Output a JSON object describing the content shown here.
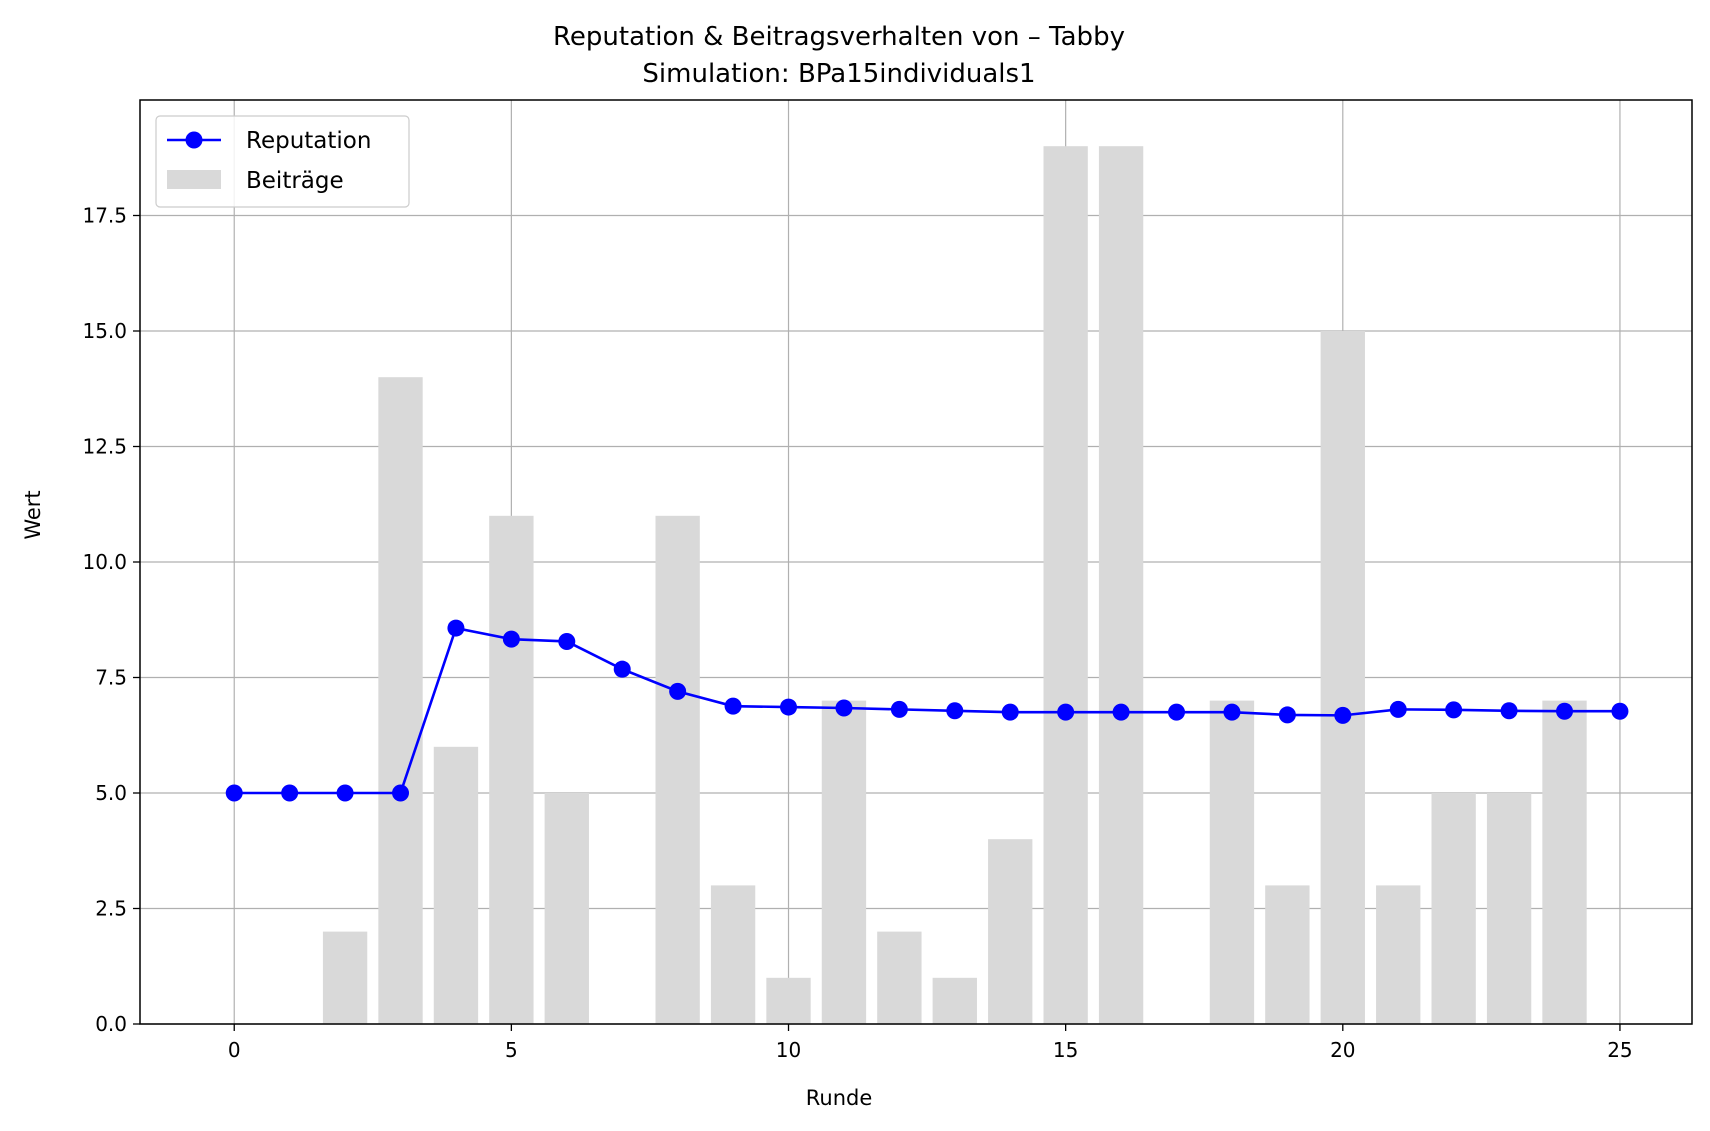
{
  "chart_data": {
    "type": "bar",
    "title": "Reputation & Beitragsverhalten von – Tabby",
    "subtitle": "Simulation: BPa15individuals1",
    "xlabel": "Runde",
    "ylabel": "Wert",
    "xlim": [
      -1.7,
      26.3
    ],
    "ylim": [
      0,
      20
    ],
    "xticks": [
      0,
      5,
      10,
      15,
      20,
      25
    ],
    "xtick_labels": [
      "0",
      "5",
      "10",
      "15",
      "20",
      "25"
    ],
    "yticks": [
      0,
      2.5,
      5,
      7.5,
      10,
      12.5,
      15,
      17.5
    ],
    "ytick_labels": [
      "0.0",
      "2.5",
      "5.0",
      "7.5",
      "10.0",
      "12.5",
      "15.0",
      "17.5"
    ],
    "grid": true,
    "legend_position": "top-left",
    "x": [
      0,
      1,
      2,
      3,
      4,
      5,
      6,
      7,
      8,
      9,
      10,
      11,
      12,
      13,
      14,
      15,
      16,
      17,
      18,
      19,
      20,
      21,
      22,
      23,
      24,
      25
    ],
    "series": [
      {
        "name": "Reputation",
        "kind": "line",
        "marker": "circle",
        "color": "#0000ff",
        "values": [
          5.0,
          5.0,
          5.0,
          5.0,
          8.57,
          8.33,
          8.28,
          7.68,
          7.2,
          6.88,
          6.86,
          6.84,
          6.81,
          6.78,
          6.75,
          6.75,
          6.75,
          6.75,
          6.75,
          6.69,
          6.68,
          6.81,
          6.8,
          6.78,
          6.77,
          6.77
        ]
      },
      {
        "name": "Beiträge",
        "kind": "bar",
        "color": "#d9d9d9",
        "values": [
          0,
          0,
          2,
          14,
          6,
          11,
          5,
          0,
          11,
          3,
          1,
          7,
          2,
          1,
          4,
          19,
          19,
          0,
          7,
          3,
          15,
          3,
          5,
          5,
          7,
          0
        ]
      }
    ]
  }
}
